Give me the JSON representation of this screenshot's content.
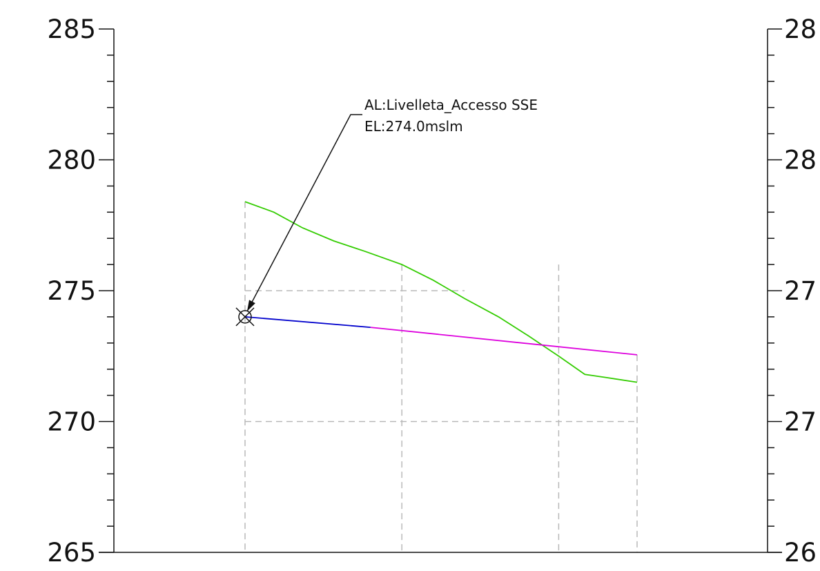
{
  "chart_data": {
    "type": "line",
    "left_axis": {
      "ylim": [
        265,
        285
      ],
      "major_ticks": [
        285,
        280,
        275,
        270,
        265
      ],
      "tick_labels": [
        "285",
        "280",
        "275",
        "270",
        "265"
      ]
    },
    "right_axis": {
      "tick_labels": [
        "28",
        "28",
        "27",
        "27",
        "26"
      ]
    },
    "grid": "dashed",
    "x_stations": [
      0,
      300,
      600,
      750
    ],
    "grid_elevations": [
      275,
      270
    ],
    "series": [
      {
        "color": "#33cc00",
        "x": [
          0,
          55,
          110,
          170,
          230,
          300,
          360,
          420,
          485,
          540,
          600,
          650,
          685,
          750
        ],
        "y": [
          278.4,
          278.0,
          277.4,
          276.9,
          276.5,
          276.0,
          275.4,
          274.7,
          274.0,
          273.3,
          272.5,
          271.8,
          271.7,
          271.5
        ]
      },
      {
        "color": "#0000cc",
        "x": [
          0,
          240
        ],
        "y": [
          274.0,
          273.6
        ]
      },
      {
        "color": "#dd00dd",
        "x": [
          240,
          750
        ],
        "y": [
          273.6,
          272.55
        ]
      }
    ],
    "callout": {
      "line1": "AL:Livelleta_Accesso SSE",
      "line2": "EL:274.0mslm",
      "target": {
        "x": 0,
        "y": 274.0
      }
    }
  }
}
